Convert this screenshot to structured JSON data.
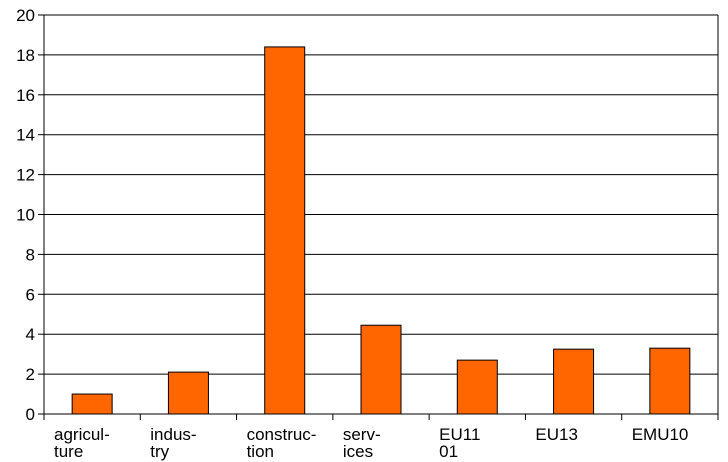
{
  "chart_data": {
    "type": "bar",
    "categories": [
      [
        "agricul-",
        "ture"
      ],
      [
        "indus-",
        "try"
      ],
      [
        "construc-",
        "tion"
      ],
      [
        "serv-",
        "ices"
      ],
      [
        "EU11",
        "01"
      ],
      [
        "EU13"
      ],
      [
        "EMU10"
      ]
    ],
    "values": [
      1.0,
      2.1,
      18.4,
      4.45,
      2.7,
      3.25,
      3.3
    ],
    "ylim": [
      0,
      20
    ],
    "yticks": [
      0,
      2,
      4,
      6,
      8,
      10,
      12,
      14,
      16,
      18,
      20
    ],
    "grid": true,
    "bar_color": "#ff6600",
    "bar_outline": "#000000",
    "title": "",
    "xlabel": "",
    "ylabel": ""
  }
}
